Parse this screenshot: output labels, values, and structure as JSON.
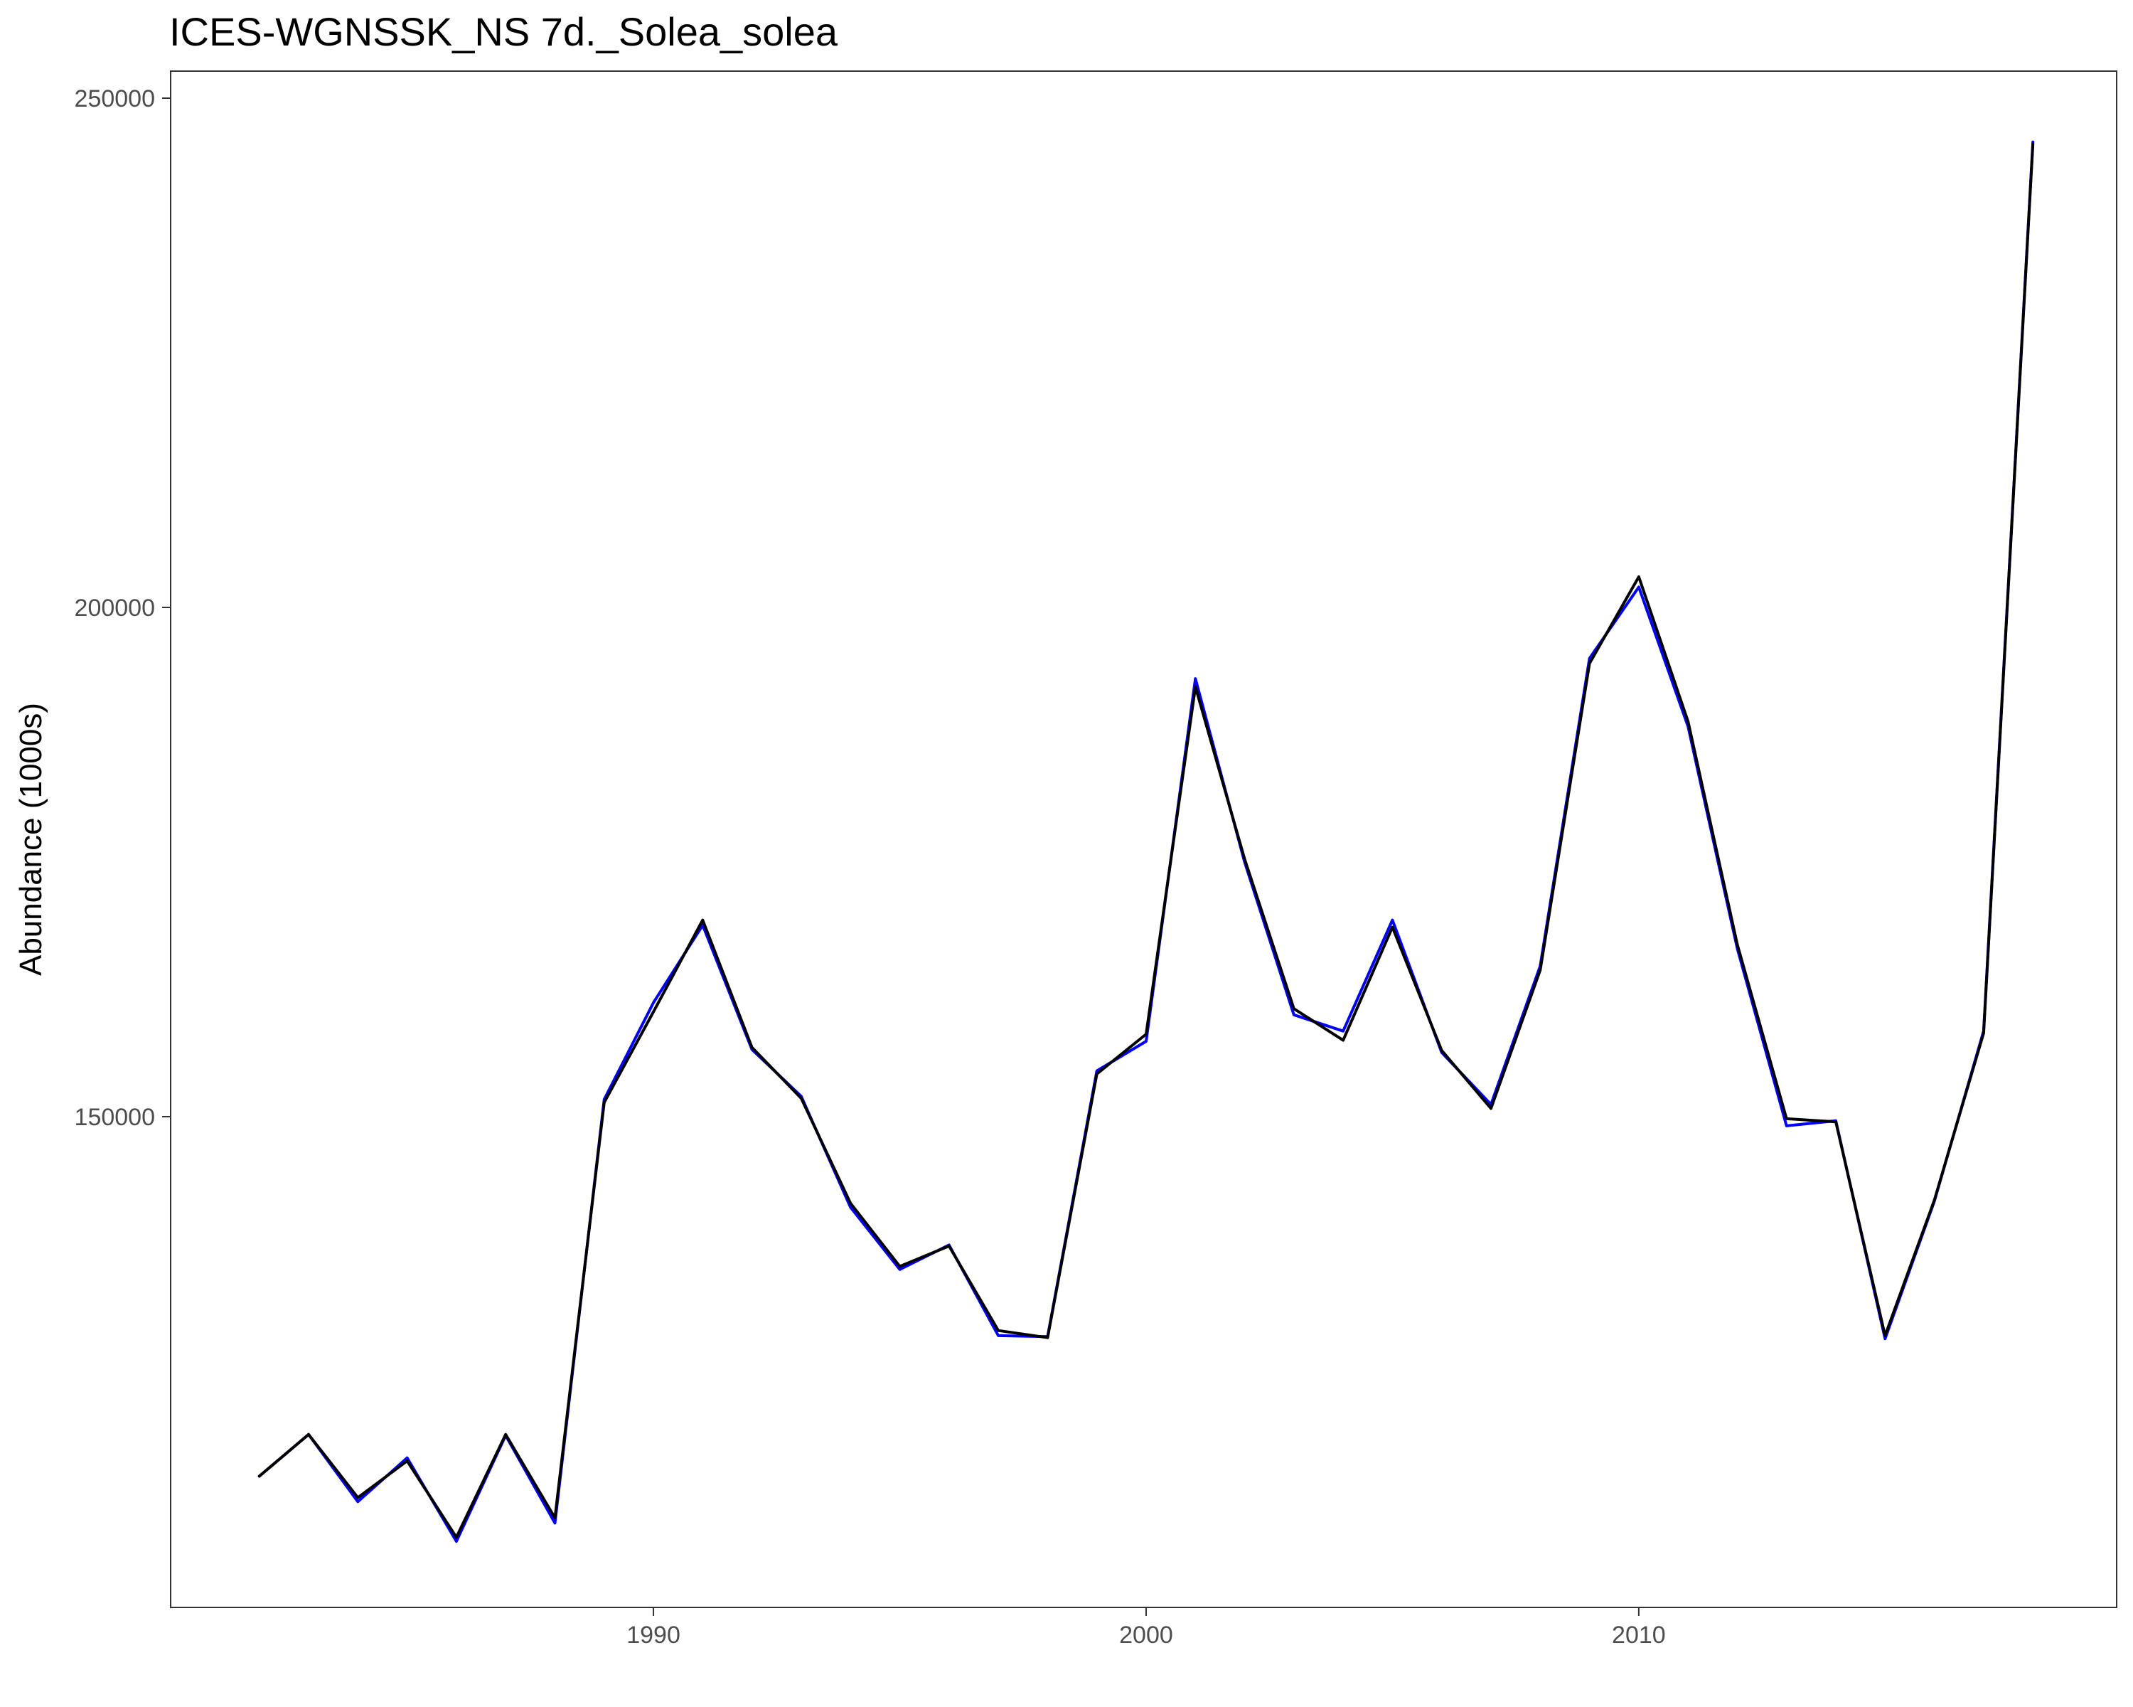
{
  "chart_data": {
    "type": "line",
    "title": "ICES-WGNSSK_NS 7d._Solea_solea",
    "xlabel": "",
    "ylabel": "Abundance (1000s)",
    "x_ticks": [
      1990,
      2000,
      2010
    ],
    "x_tick_labels": [
      "1990",
      "2000",
      "2010"
    ],
    "y_ticks": [
      150000,
      200000,
      250000
    ],
    "y_tick_labels": [
      "150000",
      "200000",
      "250000"
    ],
    "xlim": [
      1980.2,
      2019.7
    ],
    "ylim": [
      102000,
      250000
    ],
    "grid": false,
    "legend": "none",
    "x": [
      1982,
      1983,
      1984,
      1985,
      1986,
      1987,
      1988,
      1989,
      1990,
      1991,
      1992,
      1993,
      1994,
      1995,
      1996,
      1997,
      1998,
      1999,
      2000,
      2001,
      2002,
      2003,
      2004,
      2005,
      2006,
      2007,
      2008,
      2009,
      2010,
      2011,
      2012,
      2013,
      2014,
      2015,
      2016,
      2017,
      2018
    ],
    "series": [
      {
        "color": "#0000ff",
        "values": [
          114700,
          118800,
          112200,
          116500,
          108300,
          118700,
          110100,
          151700,
          161200,
          168800,
          156600,
          152000,
          141100,
          135000,
          137400,
          128500,
          128400,
          154500,
          157400,
          193000,
          175000,
          160000,
          158400,
          169300,
          156300,
          151200,
          164800,
          195000,
          202000,
          188300,
          166500,
          149100,
          149600,
          128200,
          141700,
          158400,
          245700
        ]
      },
      {
        "color": "#000000",
        "values": [
          114700,
          118800,
          112600,
          116200,
          108700,
          118800,
          110600,
          151400,
          160300,
          169300,
          156800,
          151800,
          141500,
          135300,
          137300,
          129000,
          128300,
          154200,
          158100,
          192200,
          175300,
          160600,
          157500,
          168600,
          156500,
          150800,
          164400,
          194500,
          203000,
          188800,
          166900,
          149800,
          149500,
          128500,
          141800,
          158200,
          245500
        ]
      }
    ]
  }
}
